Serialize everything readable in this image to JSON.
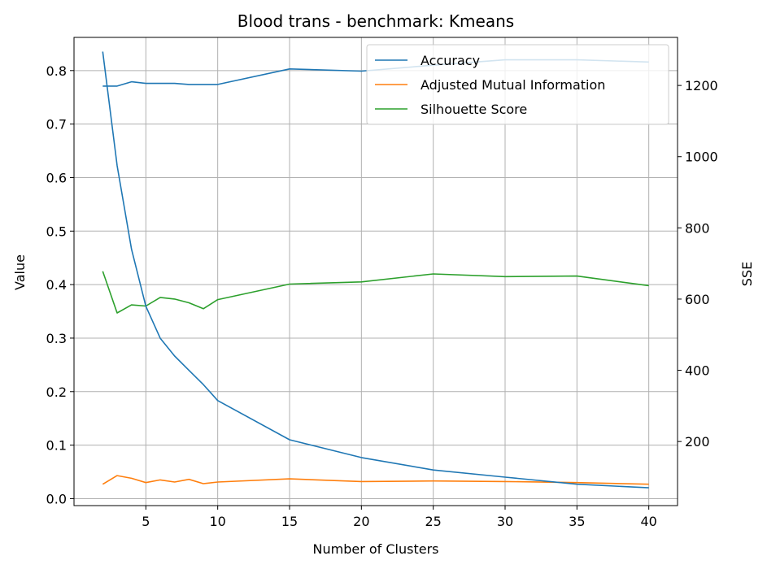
{
  "chart_data": {
    "type": "line",
    "title": "Blood trans - benchmark: Kmeans",
    "xlabel": "Number of Clusters",
    "ylabel": "Value",
    "y2label": "SSE",
    "xlim": [
      0,
      42
    ],
    "ylim": [
      -0.013,
      0.862
    ],
    "y2lim": [
      20,
      1335
    ],
    "xticks": [
      5,
      10,
      15,
      20,
      25,
      30,
      35,
      40
    ],
    "yticks": [
      0.0,
      0.1,
      0.2,
      0.3,
      0.4,
      0.5,
      0.6,
      0.7,
      0.8
    ],
    "ytick_labels": [
      "0.0",
      "0.1",
      "0.2",
      "0.3",
      "0.4",
      "0.5",
      "0.6",
      "0.7",
      "0.8"
    ],
    "y2ticks": [
      200,
      400,
      600,
      800,
      1000,
      1200
    ],
    "grid": true,
    "legend_position": "top-right",
    "x": [
      2,
      3,
      4,
      5,
      6,
      7,
      8,
      9,
      10,
      15,
      20,
      25,
      30,
      35,
      40
    ],
    "series": [
      {
        "name": "Accuracy",
        "axis": "left",
        "color": "#1f77b4",
        "values": [
          0.771,
          0.771,
          0.779,
          0.776,
          0.776,
          0.776,
          0.774,
          0.774,
          0.774,
          0.803,
          0.799,
          0.81,
          0.82,
          0.82,
          0.816
        ],
        "in_legend": true
      },
      {
        "name": "Adjusted Mutual Information",
        "axis": "left",
        "color": "#ff7f0e",
        "values": [
          0.027,
          0.043,
          0.038,
          0.03,
          0.035,
          0.031,
          0.036,
          0.028,
          0.031,
          0.037,
          0.032,
          0.033,
          0.032,
          0.03,
          0.027
        ],
        "in_legend": true
      },
      {
        "name": "Silhouette Score",
        "axis": "left",
        "color": "#2ca02c",
        "values": [
          0.425,
          0.347,
          0.362,
          0.36,
          0.376,
          0.373,
          0.366,
          0.355,
          0.372,
          0.401,
          0.405,
          0.42,
          0.415,
          0.416,
          0.398
        ],
        "in_legend": true
      },
      {
        "name": "",
        "axis": "right",
        "color": "#1f77b4",
        "values": [
          1295,
          975,
          740,
          580,
          490,
          440,
          400,
          360,
          315,
          205,
          155,
          120,
          100,
          80,
          70
        ],
        "in_legend": false
      }
    ]
  }
}
